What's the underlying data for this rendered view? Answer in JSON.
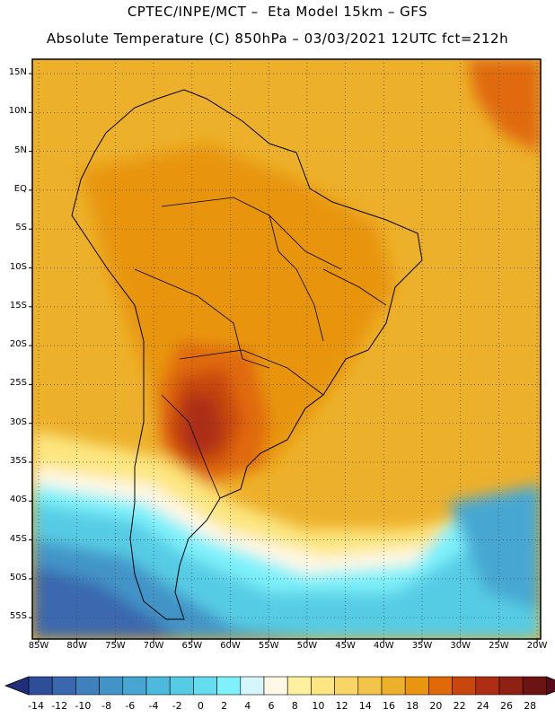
{
  "header": {
    "line1": "CPTEC/INPE/MCT –  Eta Model 15km – GFS",
    "line2": "Absolute Temperature (C) 850hPa – 03/03/2021 12UTC fct=212h"
  },
  "map": {
    "region": "South America",
    "field": "Absolute Temperature (C) 850hPa",
    "lat_labels": [
      "15N",
      "10N",
      "5N",
      "EQ",
      "5S",
      "10S",
      "15S",
      "20S",
      "25S",
      "30S",
      "35S",
      "40S",
      "45S",
      "50S",
      "55S"
    ],
    "lon_labels": [
      "85W",
      "80W",
      "75W",
      "70W",
      "65W",
      "60W",
      "55W",
      "50W",
      "45W",
      "40W",
      "35W",
      "30W",
      "25W",
      "20W"
    ]
  },
  "colorbar": {
    "labels": [
      "-14",
      "-12",
      "-10",
      "-8",
      "-6",
      "-4",
      "-2",
      "0",
      "2",
      "4",
      "6",
      "8",
      "10",
      "12",
      "14",
      "16",
      "18",
      "20",
      "22",
      "24",
      "26",
      "28"
    ],
    "colors": [
      "#2e4e9a",
      "#3a68ae",
      "#3f80bd",
      "#4294c8",
      "#47a7d2",
      "#4db9dc",
      "#56cce4",
      "#66dcef",
      "#7ef1fb",
      "#d5f6fb",
      "#fff8e6",
      "#fff0a0",
      "#fde681",
      "#f8d566",
      "#f2c449",
      "#edb02a",
      "#e8950f",
      "#e06a0a",
      "#c8470e",
      "#ad2e12",
      "#8e2114",
      "#6c1414"
    ],
    "under_color": "#1f2f7a",
    "over_color": "#5a0a1c"
  }
}
